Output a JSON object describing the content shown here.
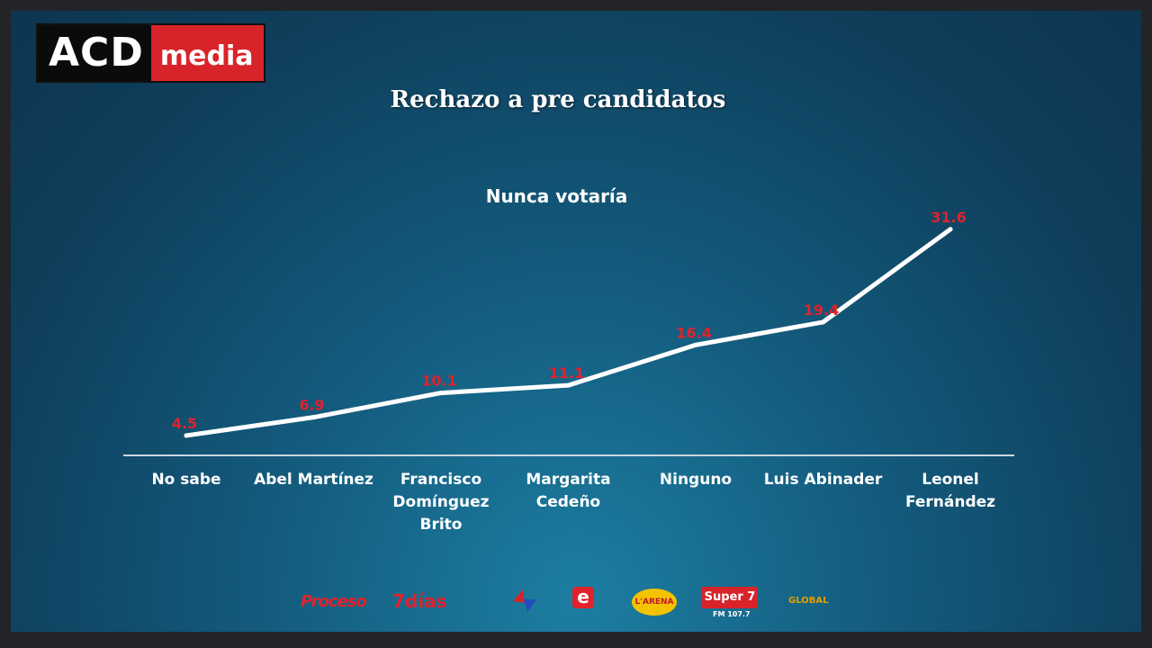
{
  "brand": {
    "part1": "ACD",
    "part2": "media"
  },
  "chart_data": {
    "type": "line",
    "title": "Rechazo a pre candidatos",
    "subtitle": "Nunca votaría",
    "categories": [
      [
        "No sabe"
      ],
      [
        "Abel Martínez"
      ],
      [
        "Francisco",
        "Domínguez",
        "Brito"
      ],
      [
        "Margarita",
        "Cedeño"
      ],
      [
        "Ninguno"
      ],
      [
        "Luis Abinader"
      ],
      [
        "Leonel",
        "Fernández"
      ]
    ],
    "series": [
      {
        "values": [
          4.5,
          6.9,
          10.1,
          11.1,
          16.4,
          19.4,
          31.6
        ]
      }
    ],
    "data_labels": [
      "4.5",
      "6.9",
      "10.1",
      "11.1",
      "16.4",
      "19.4",
      "31.6"
    ],
    "ylim": [
      0,
      35
    ],
    "grid": false,
    "line_color": "#ffffff",
    "label_color": "#e0222b"
  },
  "sponsors": [
    {
      "name": "proceso-logo",
      "text": "Proceso"
    },
    {
      "name": "7dias-logo",
      "text": "7días"
    },
    {
      "name": "channel-logo",
      "text": ""
    },
    {
      "name": "e-logo",
      "text": "e"
    },
    {
      "name": "larena-logo",
      "text": "L'ARENA"
    },
    {
      "name": "super7-logo",
      "text": "Super 7",
      "sub": "FM 107.7"
    },
    {
      "name": "global-logo",
      "text": "GLOBAL"
    }
  ]
}
